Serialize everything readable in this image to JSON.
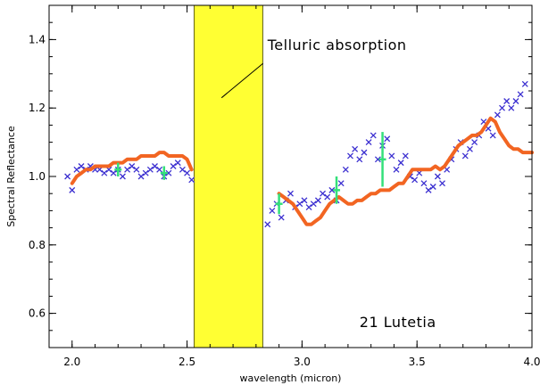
{
  "chart_data": {
    "type": "scatter",
    "xlabel": "wavelength (micron)",
    "ylabel": "Spectral Reflectance",
    "xlim": [
      1.9,
      4.0
    ],
    "ylim": [
      0.5,
      1.5
    ],
    "x_ticks": [
      2.0,
      2.5,
      3.0,
      3.5,
      4.0
    ],
    "y_ticks": [
      0.6,
      0.8,
      1.0,
      1.2,
      1.4
    ],
    "x_tick_labels": [
      "2.0",
      "2.5",
      "3.0",
      "3.5",
      "4.0"
    ],
    "y_tick_labels": [
      "0.6",
      "0.8",
      "1.0",
      "1.2",
      "1.4"
    ],
    "grid": false,
    "colors": {
      "observed": "#3b2fd0",
      "model": "#f26522",
      "error_bars": "#33e07a",
      "telluric_band": "#ffff33"
    },
    "telluric_band": {
      "x_start": 2.53,
      "x_end": 2.83,
      "label": "Telluric absorption",
      "pointer": {
        "from": [
          2.83,
          1.33
        ],
        "to": [
          2.65,
          1.23
        ]
      },
      "label_at": [
        2.85,
        1.37
      ]
    },
    "object_label": {
      "text": "21 Lutetia",
      "at": [
        3.25,
        0.56
      ]
    },
    "series": [
      {
        "role": "observed",
        "marker": "cross",
        "x": [
          1.98,
          2.0,
          2.02,
          2.04,
          2.06,
          2.08,
          2.1,
          2.12,
          2.14,
          2.16,
          2.18,
          2.2,
          2.22,
          2.24,
          2.26,
          2.28,
          2.3,
          2.32,
          2.34,
          2.36,
          2.38,
          2.4,
          2.42,
          2.44,
          2.46,
          2.48,
          2.5,
          2.52,
          2.85,
          2.87,
          2.89,
          2.91,
          2.93,
          2.95,
          2.97,
          2.99,
          3.01,
          3.03,
          3.05,
          3.07,
          3.09,
          3.11,
          3.13,
          3.15,
          3.17,
          3.19,
          3.21,
          3.23,
          3.25,
          3.27,
          3.29,
          3.31,
          3.33,
          3.35,
          3.37,
          3.39,
          3.41,
          3.43,
          3.45,
          3.47,
          3.49,
          3.51,
          3.53,
          3.55,
          3.57,
          3.59,
          3.61,
          3.63,
          3.65,
          3.67,
          3.69,
          3.71,
          3.73,
          3.75,
          3.77,
          3.79,
          3.81,
          3.83,
          3.85,
          3.87,
          3.89,
          3.91,
          3.93,
          3.95,
          3.97
        ],
        "y": [
          1.0,
          0.96,
          1.02,
          1.03,
          1.02,
          1.03,
          1.02,
          1.02,
          1.01,
          1.02,
          1.01,
          1.02,
          1.0,
          1.02,
          1.03,
          1.02,
          1.0,
          1.01,
          1.02,
          1.03,
          1.02,
          1.0,
          1.01,
          1.03,
          1.04,
          1.02,
          1.01,
          0.99,
          0.86,
          0.9,
          0.92,
          0.88,
          0.93,
          0.95,
          0.91,
          0.92,
          0.93,
          0.91,
          0.92,
          0.93,
          0.95,
          0.94,
          0.96,
          0.93,
          0.98,
          1.02,
          1.06,
          1.08,
          1.05,
          1.07,
          1.1,
          1.12,
          1.05,
          1.09,
          1.11,
          1.06,
          1.02,
          1.04,
          1.06,
          1.0,
          0.99,
          1.01,
          0.98,
          0.96,
          0.97,
          1.0,
          0.98,
          1.02,
          1.05,
          1.08,
          1.1,
          1.06,
          1.08,
          1.1,
          1.12,
          1.16,
          1.14,
          1.12,
          1.18,
          1.2,
          1.22,
          1.2,
          1.22,
          1.24,
          1.27
        ]
      },
      {
        "role": "model",
        "marker": "line",
        "x": [
          2.0,
          2.02,
          2.04,
          2.06,
          2.08,
          2.1,
          2.12,
          2.14,
          2.16,
          2.18,
          2.2,
          2.22,
          2.24,
          2.26,
          2.28,
          2.3,
          2.32,
          2.34,
          2.36,
          2.38,
          2.4,
          2.42,
          2.44,
          2.46,
          2.48,
          2.5,
          2.52,
          2.9,
          2.92,
          2.94,
          2.96,
          2.98,
          3.0,
          3.02,
          3.04,
          3.06,
          3.08,
          3.1,
          3.12,
          3.14,
          3.16,
          3.18,
          3.2,
          3.22,
          3.24,
          3.26,
          3.28,
          3.3,
          3.32,
          3.34,
          3.36,
          3.38,
          3.4,
          3.42,
          3.44,
          3.46,
          3.48,
          3.5,
          3.52,
          3.54,
          3.56,
          3.58,
          3.6,
          3.62,
          3.64,
          3.66,
          3.68,
          3.7,
          3.72,
          3.74,
          3.76,
          3.78,
          3.8,
          3.82,
          3.84,
          3.86,
          3.88,
          3.9,
          3.92,
          3.94,
          3.96,
          3.98,
          4.0
        ],
        "y": [
          0.98,
          1.0,
          1.01,
          1.02,
          1.02,
          1.03,
          1.03,
          1.03,
          1.03,
          1.04,
          1.04,
          1.04,
          1.05,
          1.05,
          1.05,
          1.06,
          1.06,
          1.06,
          1.06,
          1.07,
          1.07,
          1.06,
          1.06,
          1.06,
          1.06,
          1.05,
          1.02,
          0.95,
          0.94,
          0.93,
          0.92,
          0.9,
          0.88,
          0.86,
          0.86,
          0.87,
          0.88,
          0.9,
          0.92,
          0.93,
          0.94,
          0.93,
          0.92,
          0.92,
          0.93,
          0.93,
          0.94,
          0.95,
          0.95,
          0.96,
          0.96,
          0.96,
          0.97,
          0.98,
          0.98,
          1.0,
          1.02,
          1.02,
          1.02,
          1.02,
          1.02,
          1.03,
          1.02,
          1.03,
          1.05,
          1.07,
          1.09,
          1.1,
          1.11,
          1.12,
          1.12,
          1.13,
          1.15,
          1.17,
          1.16,
          1.13,
          1.11,
          1.09,
          1.08,
          1.08,
          1.07,
          1.07,
          1.07
        ]
      }
    ],
    "error_bars": [
      {
        "x": 2.2,
        "y": 1.02,
        "low": 1.0,
        "high": 1.04
      },
      {
        "x": 2.4,
        "y": 1.01,
        "low": 0.99,
        "high": 1.03
      },
      {
        "x": 2.9,
        "y": 0.92,
        "low": 0.89,
        "high": 0.95
      },
      {
        "x": 3.15,
        "y": 0.96,
        "low": 0.92,
        "high": 1.0
      },
      {
        "x": 3.35,
        "y": 1.05,
        "low": 0.97,
        "high": 1.13
      }
    ]
  }
}
